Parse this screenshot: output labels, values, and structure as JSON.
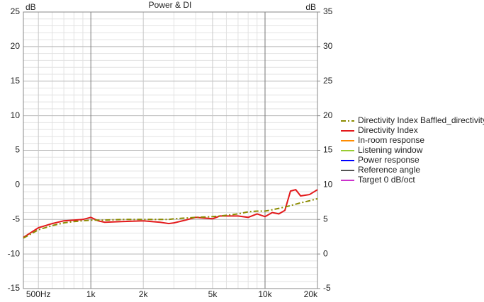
{
  "chart_data": {
    "type": "line",
    "title": "Power & DI",
    "ylabel": "dB",
    "y2label": "dB",
    "xscale": "log",
    "grid": true,
    "x": [
      410,
      500,
      600,
      700,
      800,
      900,
      1000,
      1100,
      1200,
      1500,
      2000,
      2500,
      2800,
      3000,
      3500,
      4000,
      5000,
      5500,
      6000,
      7000,
      8000,
      9000,
      10000,
      11000,
      12000,
      13000,
      14000,
      15000,
      16000,
      18000,
      20000
    ],
    "xlim": [
      410,
      20000
    ],
    "xticks": [
      {
        "value": 500,
        "label": "500Hz"
      },
      {
        "value": 1000,
        "label": "1k"
      },
      {
        "value": 2000,
        "label": "2k"
      },
      {
        "value": 5000,
        "label": "5k"
      },
      {
        "value": 10000,
        "label": "10k"
      },
      {
        "value": 20000,
        "label": "20k"
      }
    ],
    "xminorticks": [
      600,
      700,
      800,
      900,
      3000,
      4000,
      6000,
      7000,
      8000,
      9000
    ],
    "ylim": [
      -15,
      25
    ],
    "yticks": [
      -15,
      -10,
      -5,
      0,
      5,
      10,
      15,
      20,
      25
    ],
    "yminorticks": [
      -14,
      -13,
      -12,
      -11,
      -9,
      -8,
      -7,
      -6,
      -4,
      -3,
      -2,
      -1,
      1,
      2,
      3,
      4,
      6,
      7,
      8,
      9,
      11,
      12,
      13,
      14,
      16,
      17,
      18,
      19,
      21,
      22,
      23,
      24
    ],
    "y2lim": [
      -5,
      35
    ],
    "y2ticks": [
      -5,
      0,
      5,
      10,
      15,
      20,
      25,
      30,
      35
    ],
    "legend": "right",
    "series": [
      {
        "name": "Directivity Index Baffled_directivity",
        "color": "#8b8b00",
        "linestyle": "dashdot",
        "axis": "y2",
        "values": [
          2.3,
          3.5,
          4.1,
          4.5,
          4.7,
          4.8,
          4.9,
          4.9,
          4.9,
          5.0,
          5.0,
          5.0,
          5.0,
          5.1,
          5.2,
          5.3,
          5.4,
          5.5,
          5.6,
          5.8,
          6.1,
          6.2,
          6.2,
          6.4,
          6.6,
          6.8,
          7.0,
          7.2,
          7.4,
          7.7,
          8.0
        ]
      },
      {
        "name": "Directivity Index",
        "color": "#e31a1c",
        "linestyle": "solid",
        "axis": "y2",
        "values": [
          2.4,
          3.8,
          4.4,
          4.8,
          4.9,
          5.0,
          5.3,
          4.8,
          4.6,
          4.7,
          4.8,
          4.6,
          4.4,
          4.5,
          4.9,
          5.3,
          5.1,
          5.5,
          5.5,
          5.5,
          5.3,
          5.8,
          5.4,
          6.0,
          5.8,
          6.3,
          9.1,
          9.3,
          8.4,
          8.6,
          9.3
        ]
      },
      {
        "name": "In-room response",
        "color": "#ff8c00",
        "linestyle": "solid",
        "axis": "y2",
        "values": [
          null,
          null,
          null,
          null,
          null,
          null,
          null,
          null,
          null,
          null,
          null,
          null,
          null,
          null,
          null,
          null,
          null,
          null,
          null,
          null,
          null,
          null,
          null,
          null,
          null,
          null,
          null,
          null,
          null,
          null,
          null
        ]
      },
      {
        "name": "Listening window",
        "color": "#99cc33",
        "linestyle": "solid",
        "axis": "y2",
        "values": [
          null,
          null,
          null,
          null,
          null,
          null,
          null,
          null,
          null,
          null,
          null,
          null,
          null,
          null,
          null,
          null,
          null,
          null,
          null,
          null,
          null,
          null,
          null,
          null,
          null,
          null,
          null,
          null,
          null,
          null,
          null
        ]
      },
      {
        "name": "Power response",
        "color": "#0000ff",
        "linestyle": "solid",
        "axis": "y2",
        "values": [
          null,
          null,
          null,
          null,
          null,
          null,
          null,
          null,
          null,
          null,
          null,
          null,
          null,
          null,
          null,
          null,
          null,
          null,
          null,
          null,
          null,
          null,
          null,
          null,
          null,
          null,
          null,
          null,
          null,
          null,
          null
        ]
      },
      {
        "name": "Reference angle",
        "color": "#555555",
        "linestyle": "solid",
        "axis": "y2",
        "values": [
          null,
          null,
          null,
          null,
          null,
          null,
          null,
          null,
          null,
          null,
          null,
          null,
          null,
          null,
          null,
          null,
          null,
          null,
          null,
          null,
          null,
          null,
          null,
          null,
          null,
          null,
          null,
          null,
          null,
          null,
          null
        ]
      },
      {
        "name": "Target 0 dB/oct",
        "color": "#cc33cc",
        "linestyle": "solid",
        "axis": "y2",
        "values": [
          null,
          null,
          null,
          null,
          null,
          null,
          null,
          null,
          null,
          null,
          null,
          null,
          null,
          null,
          null,
          null,
          null,
          null,
          null,
          null,
          null,
          null,
          null,
          null,
          null,
          null,
          null,
          null,
          null,
          null,
          null
        ]
      }
    ]
  }
}
